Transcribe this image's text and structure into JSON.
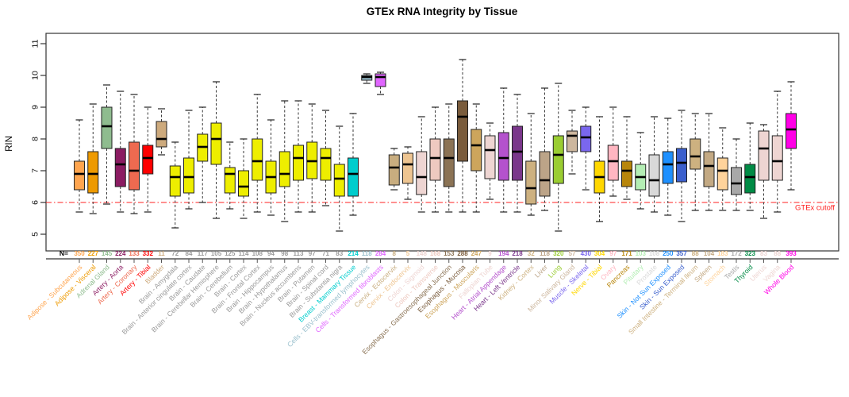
{
  "title": "GTEx RNA Integrity by Tissue",
  "y_axis": {
    "label": "RIN",
    "ticks": [
      5,
      6,
      7,
      8,
      9,
      10,
      11
    ]
  },
  "x_axis": {
    "n_prefix": "N="
  },
  "cutoff": {
    "value": 6,
    "label": "GTEx cutoff",
    "color": "#ff2020"
  },
  "chart_data": {
    "type": "boxplot",
    "title": "GTEx RNA Integrity by Tissue",
    "ylabel": "RIN",
    "ylim": [
      4.5,
      11.3
    ],
    "grid": false,
    "cutoff_line": {
      "y": 6,
      "label": "GTEx cutoff",
      "style": "dotdash-red"
    },
    "whisker_style": "dashed",
    "brain_label_color": "#9a9a9a",
    "tissues": [
      {
        "name": "Adipose - Subcutaneous",
        "n": 350,
        "color": "#FFA54F",
        "lo": 5.7,
        "q1": 6.4,
        "med": 6.9,
        "q3": 7.3,
        "hi": 8.6
      },
      {
        "name": "Adipose - Visceral",
        "n": 227,
        "color": "#EE9A00",
        "lo": 5.65,
        "q1": 6.3,
        "med": 6.9,
        "q3": 7.6,
        "hi": 9.1
      },
      {
        "name": "Adrenal Gland",
        "n": 145,
        "color": "#8FBC8F",
        "lo": 5.95,
        "q1": 7.7,
        "med": 8.4,
        "q3": 9.0,
        "hi": 9.7
      },
      {
        "name": "Artery - Aorta",
        "n": 224,
        "color": "#8B1C62",
        "lo": 5.7,
        "q1": 6.5,
        "med": 7.2,
        "q3": 7.7,
        "hi": 9.5
      },
      {
        "name": "Artery - Coronary",
        "n": 133,
        "color": "#EE6A50",
        "lo": 5.65,
        "q1": 6.4,
        "med": 7.0,
        "q3": 7.9,
        "hi": 9.4
      },
      {
        "name": "Artery - Tibial",
        "n": 332,
        "color": "#FF0000",
        "lo": 5.7,
        "q1": 6.9,
        "med": 7.4,
        "q3": 7.8,
        "hi": 9.0
      },
      {
        "name": "Bladder",
        "n": 11,
        "color": "#CDAA7D",
        "lo": 7.5,
        "q1": 7.75,
        "med": 8.0,
        "q3": 8.55,
        "hi": 8.95
      },
      {
        "name": "Brain - Amygdala",
        "n": 72,
        "color": "#EEEE00",
        "label_color": "#9a9a9a",
        "lo": 5.2,
        "q1": 6.2,
        "med": 6.8,
        "q3": 7.15,
        "hi": 7.9
      },
      {
        "name": "Brain - Anterior cingulate cortex",
        "n": 84,
        "color": "#EEEE00",
        "label_color": "#9a9a9a",
        "lo": 5.8,
        "q1": 6.3,
        "med": 6.8,
        "q3": 7.4,
        "hi": 8.9
      },
      {
        "name": "Brain - Caudate",
        "n": 117,
        "color": "#EEEE00",
        "label_color": "#9a9a9a",
        "lo": 6.0,
        "q1": 7.3,
        "med": 7.75,
        "q3": 8.15,
        "hi": 9.0
      },
      {
        "name": "Brain - Cerebellar Hemisphere",
        "n": 105,
        "color": "#EEEE00",
        "label_color": "#9a9a9a",
        "lo": 5.5,
        "q1": 7.2,
        "med": 8.0,
        "q3": 8.5,
        "hi": 9.8
      },
      {
        "name": "Brain - Cerebellum",
        "n": 125,
        "color": "#EEEE00",
        "label_color": "#9a9a9a",
        "lo": 5.8,
        "q1": 6.3,
        "med": 6.9,
        "q3": 7.1,
        "hi": 7.9
      },
      {
        "name": "Brain - Cortex",
        "n": 114,
        "color": "#EEEE00",
        "label_color": "#9a9a9a",
        "lo": 5.5,
        "q1": 6.2,
        "med": 6.5,
        "q3": 7.0,
        "hi": 8.0
      },
      {
        "name": "Brain - Frontal Cortex",
        "n": 108,
        "color": "#EEEE00",
        "label_color": "#9a9a9a",
        "lo": 5.7,
        "q1": 6.7,
        "med": 7.3,
        "q3": 8.0,
        "hi": 9.4
      },
      {
        "name": "Brain - Hippocampus",
        "n": 94,
        "color": "#EEEE00",
        "label_color": "#9a9a9a",
        "lo": 5.6,
        "q1": 6.3,
        "med": 6.8,
        "q3": 7.3,
        "hi": 8.6
      },
      {
        "name": "Brain - Hypothalamus",
        "n": 98,
        "color": "#EEEE00",
        "label_color": "#9a9a9a",
        "lo": 5.4,
        "q1": 6.5,
        "med": 6.9,
        "q3": 7.6,
        "hi": 9.2
      },
      {
        "name": "Brain - Nucleus accumbens",
        "n": 113,
        "color": "#EEEE00",
        "label_color": "#9a9a9a",
        "lo": 5.7,
        "q1": 6.7,
        "med": 7.4,
        "q3": 7.8,
        "hi": 9.2
      },
      {
        "name": "Brain - Putamen",
        "n": 97,
        "color": "#EEEE00",
        "label_color": "#9a9a9a",
        "lo": 5.7,
        "q1": 6.75,
        "med": 7.3,
        "q3": 7.9,
        "hi": 9.1
      },
      {
        "name": "Brain - Spinal cord",
        "n": 71,
        "color": "#EEEE00",
        "label_color": "#9a9a9a",
        "lo": 5.9,
        "q1": 6.7,
        "med": 7.4,
        "q3": 7.7,
        "hi": 8.9
      },
      {
        "name": "Brain - Substantia nigra",
        "n": 83,
        "color": "#EEEE00",
        "label_color": "#9a9a9a",
        "lo": 5.1,
        "q1": 6.2,
        "med": 6.75,
        "q3": 7.2,
        "hi": 8.4
      },
      {
        "name": "Breast - Mammary Tissue",
        "n": 214,
        "color": "#00CDCD",
        "lo": 5.6,
        "q1": 6.2,
        "med": 6.9,
        "q3": 7.4,
        "hi": 8.8
      },
      {
        "name": "Cells - EBV-transformed lymphocytes",
        "n": 118,
        "color": "#9AC0CD",
        "lo": 9.75,
        "q1": 9.85,
        "med": 9.95,
        "q3": 10.0,
        "hi": 10.05
      },
      {
        "name": "Cells - Transformed fibroblasts",
        "n": 284,
        "color": "#E066FF",
        "lo": 9.4,
        "q1": 9.65,
        "med": 9.95,
        "q3": 10.05,
        "hi": 10.1
      },
      {
        "name": "Cervix - Ectocervix",
        "n": 8,
        "color": "#C8AD7F",
        "lo": 6.4,
        "q1": 6.55,
        "med": 7.1,
        "q3": 7.5,
        "hi": 7.7
      },
      {
        "name": "Cervix - Endocervix",
        "n": 5,
        "color": "#EEC591",
        "lo": 6.1,
        "q1": 6.6,
        "med": 7.2,
        "q3": 7.55,
        "hi": 7.75
      },
      {
        "name": "Colon - Sigmoid",
        "n": 148,
        "color": "#EED5D2",
        "lo": 5.7,
        "q1": 6.25,
        "med": 6.8,
        "q3": 7.6,
        "hi": 8.7
      },
      {
        "name": "Colon - Transverse",
        "n": 168,
        "color": "#EEC9C0",
        "lo": 5.7,
        "q1": 6.7,
        "med": 7.4,
        "q3": 8.0,
        "hi": 9.0
      },
      {
        "name": "Esophagus - Gastroesophageal Junction",
        "n": 153,
        "color": "#8B7355",
        "lo": 5.7,
        "q1": 6.5,
        "med": 7.4,
        "q3": 8.0,
        "hi": 9.1
      },
      {
        "name": "Esophagus - Mucosa",
        "n": 288,
        "color": "#7A5C3C",
        "lo": 5.7,
        "q1": 7.3,
        "med": 8.7,
        "q3": 9.2,
        "hi": 10.5
      },
      {
        "name": "Esophagus - Muscularis",
        "n": 247,
        "color": "#CDA55C",
        "lo": 5.7,
        "q1": 7.0,
        "med": 7.8,
        "q3": 8.3,
        "hi": 9.1
      },
      {
        "name": "Fallopian Tube",
        "n": 9,
        "color": "#EED5D2",
        "lo": 6.1,
        "q1": 6.75,
        "med": 7.65,
        "q3": 8.1,
        "hi": 8.5
      },
      {
        "name": "Heart - Atrial Appendage",
        "n": 194,
        "color": "#B452CD",
        "lo": 5.7,
        "q1": 6.7,
        "med": 7.4,
        "q3": 8.2,
        "hi": 9.6
      },
      {
        "name": "Heart - Left Ventricle",
        "n": 218,
        "color": "#7A378B",
        "lo": 5.7,
        "q1": 6.7,
        "med": 7.6,
        "q3": 8.4,
        "hi": 9.4
      },
      {
        "name": "Kidney - Cortex",
        "n": 32,
        "color": "#CDB180",
        "lo": 5.6,
        "q1": 5.95,
        "med": 6.45,
        "q3": 7.3,
        "hi": 8.8
      },
      {
        "name": "Liver",
        "n": 118,
        "color": "#BCA488",
        "lo": 5.75,
        "q1": 6.2,
        "med": 6.7,
        "q3": 7.6,
        "hi": 9.6
      },
      {
        "name": "Lung",
        "n": 320,
        "color": "#9ACD32",
        "lo": 5.1,
        "q1": 6.6,
        "med": 7.5,
        "q3": 8.1,
        "hi": 9.75
      },
      {
        "name": "Minor Salivary Gland",
        "n": 57,
        "color": "#CDB79E",
        "lo": 6.9,
        "q1": 7.6,
        "med": 8.1,
        "q3": 8.25,
        "hi": 8.9
      },
      {
        "name": "Muscle - Skeletal",
        "n": 430,
        "color": "#7A67EE",
        "lo": 6.4,
        "q1": 7.6,
        "med": 8.05,
        "q3": 8.4,
        "hi": 9.0
      },
      {
        "name": "Nerve - Tibial",
        "n": 304,
        "color": "#FFD700",
        "lo": 5.4,
        "q1": 6.3,
        "med": 6.8,
        "q3": 7.3,
        "hi": 8.7
      },
      {
        "name": "Ovary",
        "n": 97,
        "color": "#FFB6C1",
        "lo": 6.2,
        "q1": 6.7,
        "med": 7.3,
        "q3": 7.8,
        "hi": 9.0
      },
      {
        "name": "Pancreas",
        "n": 171,
        "color": "#B8860B",
        "lo": 6.1,
        "q1": 6.5,
        "med": 7.0,
        "q3": 7.3,
        "hi": 8.7
      },
      {
        "name": "Pituitary",
        "n": 103,
        "color": "#B4EEB4",
        "lo": 5.8,
        "q1": 6.4,
        "med": 6.8,
        "q3": 7.2,
        "hi": 8.2
      },
      {
        "name": "Prostate",
        "n": 108,
        "color": "#D9D9D9",
        "lo": 5.7,
        "q1": 6.2,
        "med": 6.7,
        "q3": 7.5,
        "hi": 8.7
      },
      {
        "name": "Skin - Not Sun Exposed",
        "n": 250,
        "color": "#1E90FF",
        "lo": 5.6,
        "q1": 6.6,
        "med": 7.2,
        "q3": 7.6,
        "hi": 8.65
      },
      {
        "name": "Skin - Sun Exposed",
        "n": 357,
        "color": "#3A5FCD",
        "lo": 5.4,
        "q1": 6.65,
        "med": 7.25,
        "q3": 7.7,
        "hi": 8.9
      },
      {
        "name": "Small Intestine - Terminal Ileum",
        "n": 88,
        "color": "#CDB180",
        "lo": 5.75,
        "q1": 7.05,
        "med": 7.45,
        "q3": 8.0,
        "hi": 8.8
      },
      {
        "name": "Spleen",
        "n": 104,
        "color": "#C3A983",
        "lo": 5.75,
        "q1": 6.5,
        "med": 7.15,
        "q3": 7.6,
        "hi": 8.8
      },
      {
        "name": "Stomach",
        "n": 183,
        "color": "#FFD39B",
        "lo": 5.75,
        "q1": 6.4,
        "med": 7.0,
        "q3": 7.4,
        "hi": 8.35
      },
      {
        "name": "Testis",
        "n": 172,
        "color": "#A8A8A8",
        "lo": 5.75,
        "q1": 6.25,
        "med": 6.6,
        "q3": 7.1,
        "hi": 8.0
      },
      {
        "name": "Thyroid",
        "n": 323,
        "color": "#008B45",
        "lo": 5.75,
        "q1": 6.3,
        "med": 6.8,
        "q3": 7.2,
        "hi": 8.5
      },
      {
        "name": "Uterus",
        "n": 83,
        "color": "#EED5D2",
        "lo": 5.5,
        "q1": 6.7,
        "med": 7.7,
        "q3": 8.25,
        "hi": 8.45
      },
      {
        "name": "Vagina",
        "n": 88,
        "color": "#EED5D2",
        "lo": 5.7,
        "q1": 6.7,
        "med": 7.3,
        "q3": 8.1,
        "hi": 9.5
      },
      {
        "name": "Whole Blood",
        "n": 393,
        "color": "#FF00E6",
        "lo": 6.4,
        "q1": 7.7,
        "med": 8.3,
        "q3": 8.8,
        "hi": 9.8
      }
    ]
  }
}
